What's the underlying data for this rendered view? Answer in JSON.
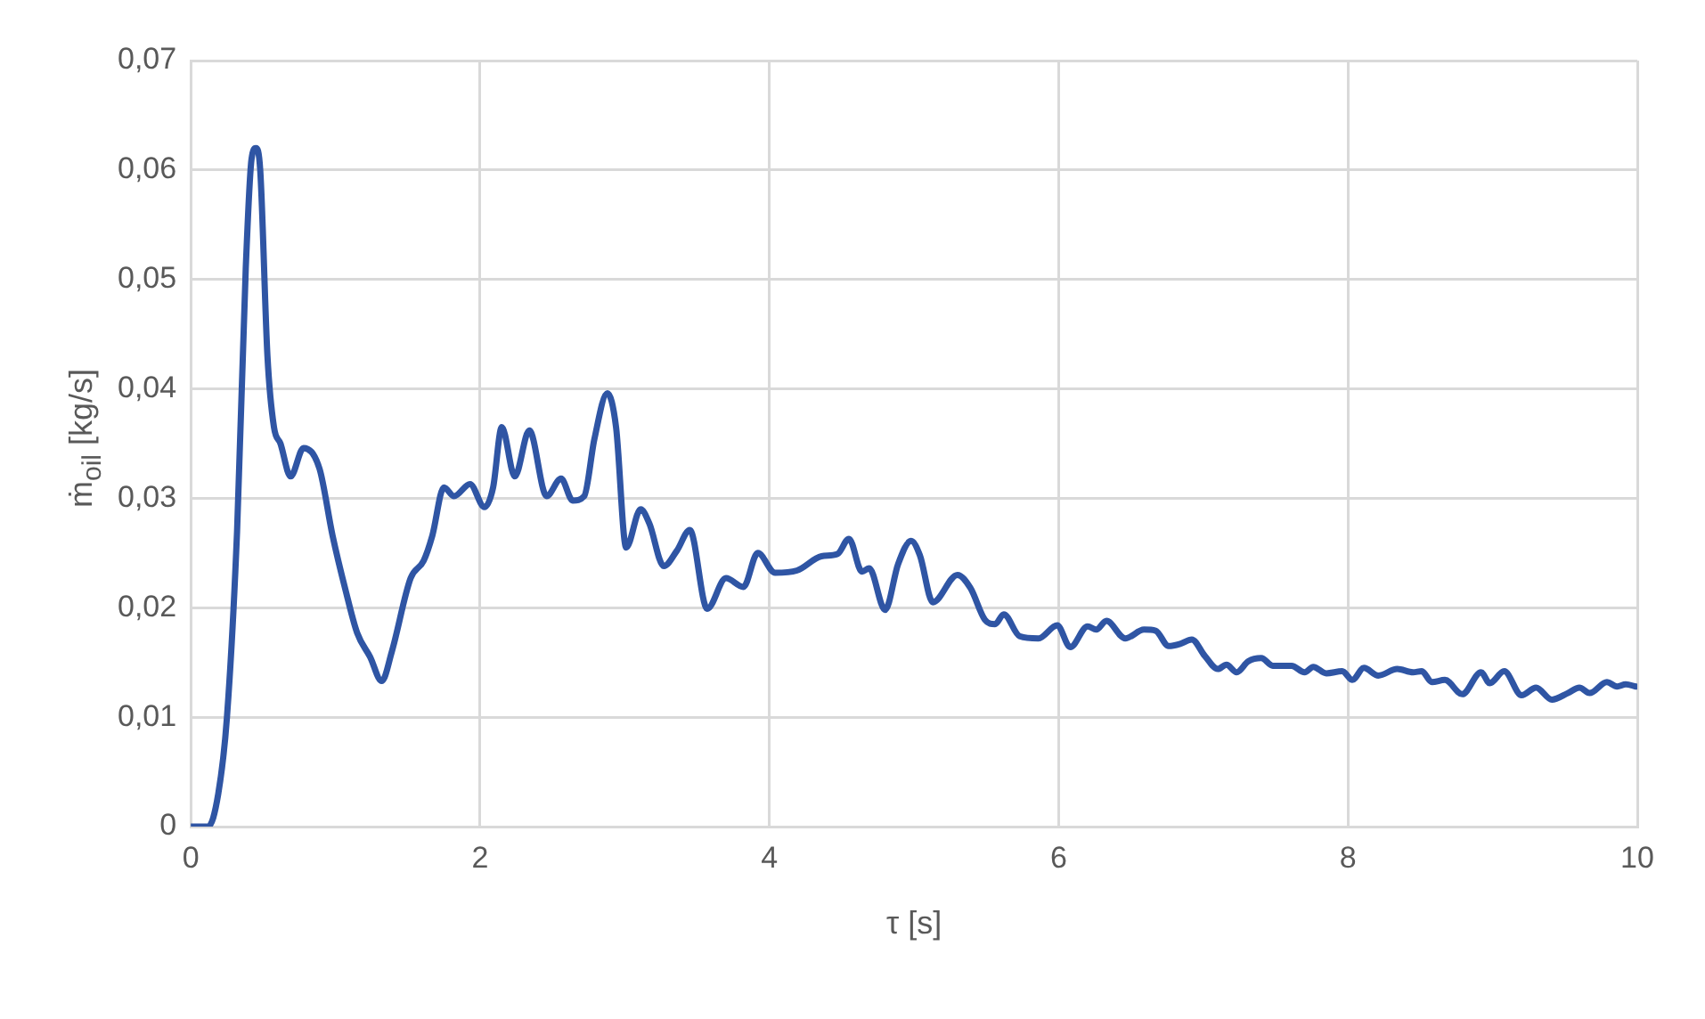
{
  "chart_data": {
    "type": "line",
    "xlabel": "τ [s]",
    "ylabel": "ṁ$_{oil}$ [kg/s]",
    "color": "#2f55a4",
    "marker": "none",
    "line_style": "solid",
    "grid": true,
    "legend": false,
    "x": [
      0,
      0.12,
      0.19,
      0.25,
      0.32,
      0.38,
      0.42,
      0.45,
      0.48,
      0.53,
      0.575,
      0.62,
      0.69,
      0.78,
      0.89,
      0.98,
      1.07,
      1.15,
      1.24,
      1.32,
      1.39,
      1.52,
      1.61,
      1.67,
      1.75,
      1.82,
      1.93,
      2.03,
      2.09,
      2.15,
      2.24,
      2.34,
      2.46,
      2.56,
      2.64,
      2.72,
      2.79,
      2.88,
      2.94,
      3.01,
      3.11,
      3.17,
      3.27,
      3.36,
      3.45,
      3.57,
      3.7,
      3.82,
      3.92,
      4.04,
      4.19,
      4.36,
      4.47,
      4.55,
      4.64,
      4.69,
      4.8,
      4.89,
      4.98,
      5.04,
      5.13,
      5.3,
      5.39,
      5.49,
      5.56,
      5.62,
      5.73,
      5.86,
      5.99,
      6.08,
      6.2,
      6.26,
      6.33,
      6.46,
      6.59,
      6.67,
      6.76,
      6.84,
      6.92,
      7.01,
      7.1,
      7.16,
      7.23,
      7.31,
      7.4,
      7.48,
      7.61,
      7.7,
      7.76,
      7.85,
      7.96,
      8.03,
      8.11,
      8.21,
      8.34,
      8.45,
      8.51,
      8.58,
      8.67,
      8.79,
      8.92,
      8.98,
      9.08,
      9.2,
      9.3,
      9.41,
      9.52,
      9.6,
      9.67,
      9.79,
      9.86,
      9.92,
      9.99
    ],
    "values": [
      0,
      0,
      0.003,
      0.01,
      0.027,
      0.051,
      0.061,
      0.062,
      0.06,
      0.043,
      0.0365,
      0.035,
      0.032,
      0.0346,
      0.0327,
      0.0266,
      0.0216,
      0.0177,
      0.0155,
      0.0133,
      0.016,
      0.0227,
      0.0243,
      0.0266,
      0.031,
      0.0302,
      0.0313,
      0.0292,
      0.031,
      0.0365,
      0.032,
      0.0362,
      0.0302,
      0.0318,
      0.0298,
      0.0302,
      0.0354,
      0.0396,
      0.0365,
      0.0255,
      0.029,
      0.0277,
      0.0238,
      0.0252,
      0.0271,
      0.0199,
      0.0227,
      0.0219,
      0.025,
      0.0232,
      0.0234,
      0.0247,
      0.0249,
      0.0263,
      0.0233,
      0.0236,
      0.0198,
      0.024,
      0.0261,
      0.0248,
      0.0205,
      0.023,
      0.0218,
      0.0189,
      0.0185,
      0.0194,
      0.0174,
      0.0172,
      0.0184,
      0.0164,
      0.0183,
      0.018,
      0.0188,
      0.0172,
      0.018,
      0.0179,
      0.0165,
      0.0167,
      0.0171,
      0.0156,
      0.0144,
      0.0148,
      0.0141,
      0.0151,
      0.0154,
      0.0147,
      0.0147,
      0.0141,
      0.0146,
      0.014,
      0.0142,
      0.0134,
      0.0145,
      0.0138,
      0.0144,
      0.0141,
      0.0142,
      0.0132,
      0.0134,
      0.0121,
      0.0141,
      0.0131,
      0.0142,
      0.012,
      0.0127,
      0.0116,
      0.0122,
      0.0127,
      0.0122,
      0.0132,
      0.0128,
      0.013,
      0.0128
    ],
    "xlim": [
      0,
      10
    ],
    "xticks": [
      0,
      2,
      4,
      6,
      8,
      10
    ],
    "ylim": [
      0,
      0.07
    ],
    "yticks": [
      {
        "value": 0,
        "label": "0"
      },
      {
        "value": 0.01,
        "label": "0,01"
      },
      {
        "value": 0.02,
        "label": "0,02"
      },
      {
        "value": 0.03,
        "label": "0,03"
      },
      {
        "value": 0.04,
        "label": "0,04"
      },
      {
        "value": 0.05,
        "label": "0,05"
      },
      {
        "value": 0.06,
        "label": "0,06"
      },
      {
        "value": 0.07,
        "label": "0,07"
      }
    ]
  }
}
